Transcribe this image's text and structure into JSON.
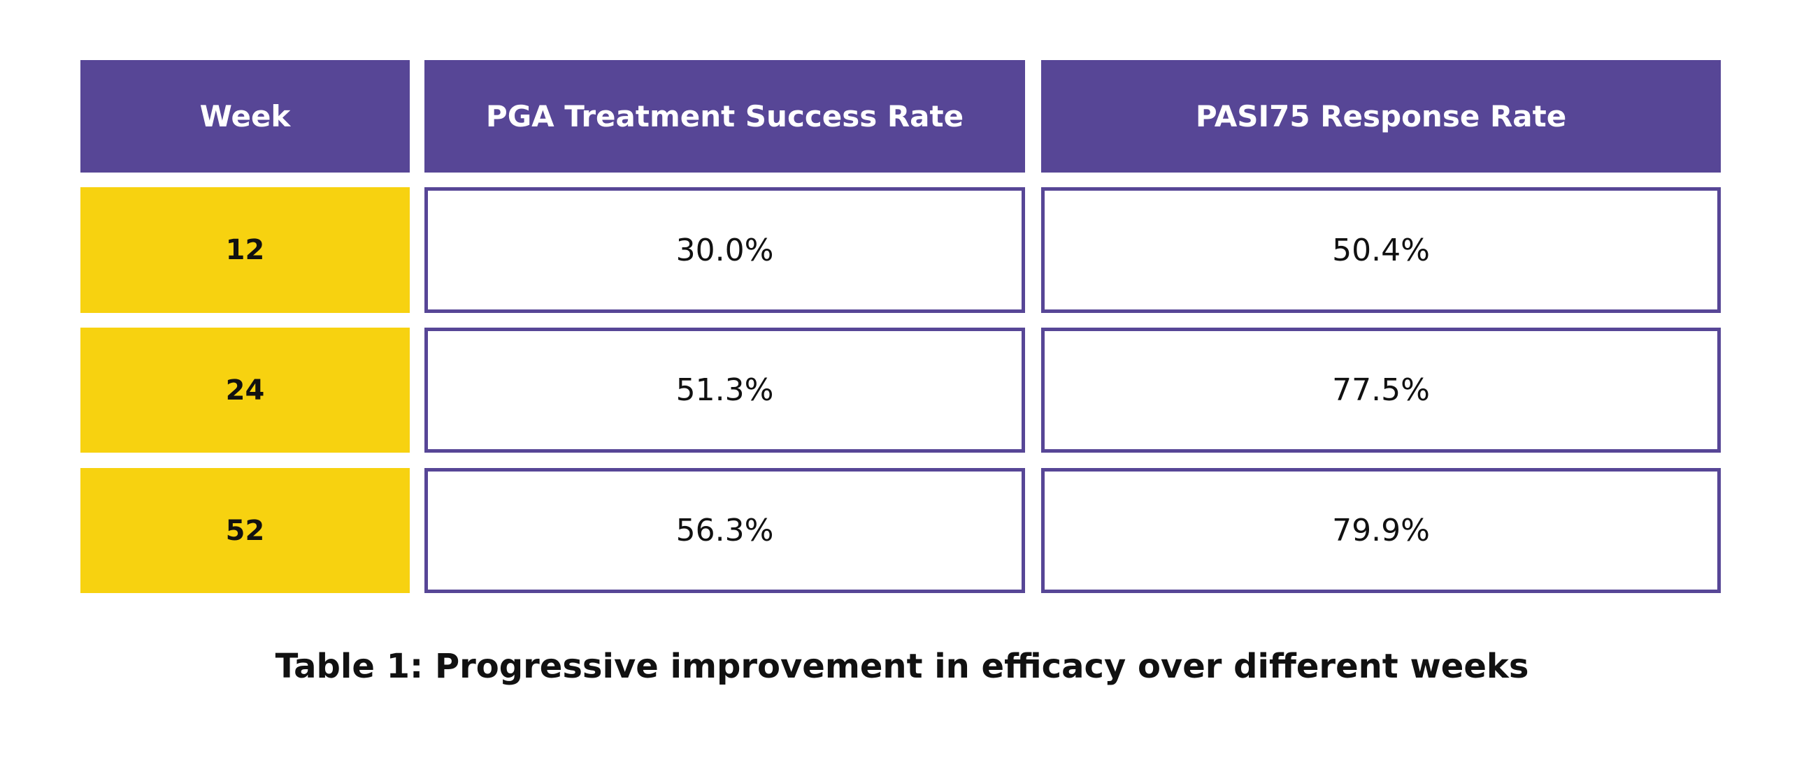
{
  "table": {
    "header": [
      "Week",
      "PGA Treatment Success Rate",
      "PASI75 Response Rate"
    ],
    "rows": [
      [
        "12",
        "30.0%",
        "50.4%"
      ],
      [
        "24",
        "51.3%",
        "77.5%"
      ],
      [
        "52",
        "56.3%",
        "79.9%"
      ]
    ]
  },
  "caption": "Table 1: Progressive improvement in efficacy over different weeks"
}
